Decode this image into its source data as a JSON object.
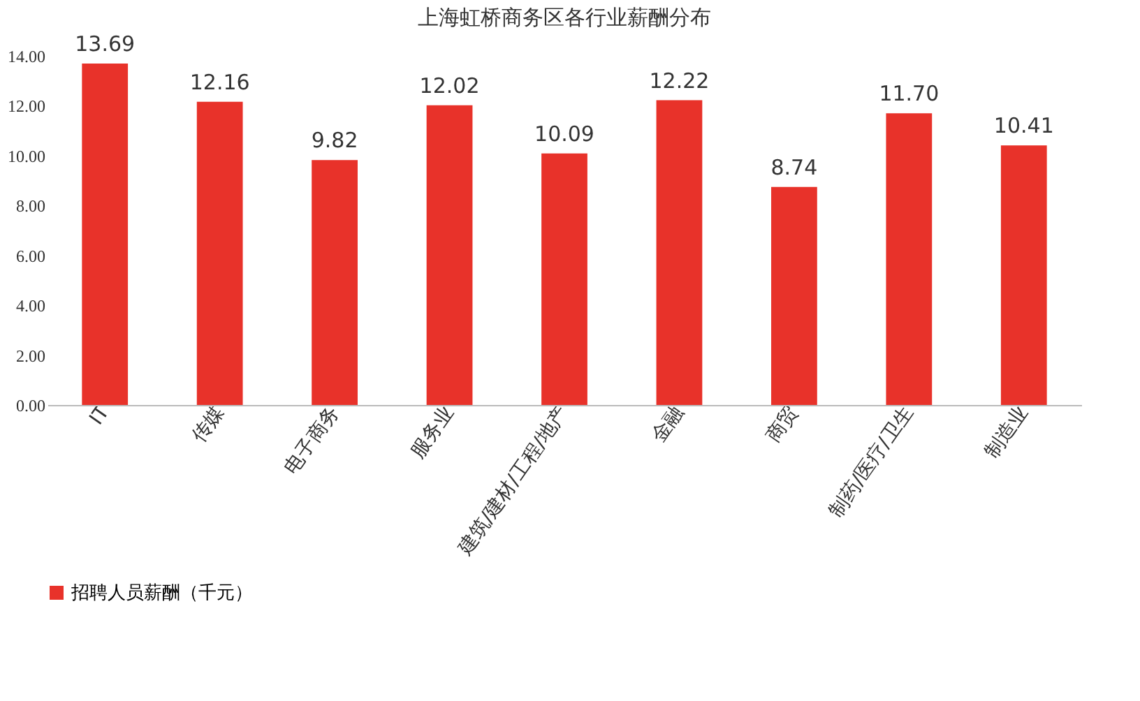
{
  "chart_data": {
    "type": "bar",
    "title": "上海虹桥商务区各行业薪酬分布",
    "categories": [
      "IT",
      "传媒",
      "电子商务",
      "服务业",
      "建筑/建材/工程/地产",
      "金融",
      "商贸",
      "制药/医疗/卫生",
      "制造业"
    ],
    "series": [
      {
        "name": "招聘人员薪酬（千元）",
        "color": "#e8322a",
        "values": [
          13.69,
          12.16,
          9.82,
          12.02,
          10.09,
          12.22,
          8.74,
          11.7,
          10.41
        ]
      }
    ],
    "value_labels": [
      "13.69",
      "12.16",
      "9.82",
      "12.02",
      "10.09",
      "12.22",
      "8.74",
      "11.70",
      "10.41"
    ],
    "ylim": [
      0,
      14
    ],
    "yticks": [
      {
        "value": 0,
        "label": "0.00"
      },
      {
        "value": 2,
        "label": "2.00"
      },
      {
        "value": 4,
        "label": "4.00"
      },
      {
        "value": 6,
        "label": "6.00"
      },
      {
        "value": 8,
        "label": "8.00"
      },
      {
        "value": 10,
        "label": "10.00"
      },
      {
        "value": 12,
        "label": "12.00"
      },
      {
        "value": 14,
        "label": "14.00"
      }
    ],
    "grid": false,
    "legend": "bottom"
  }
}
